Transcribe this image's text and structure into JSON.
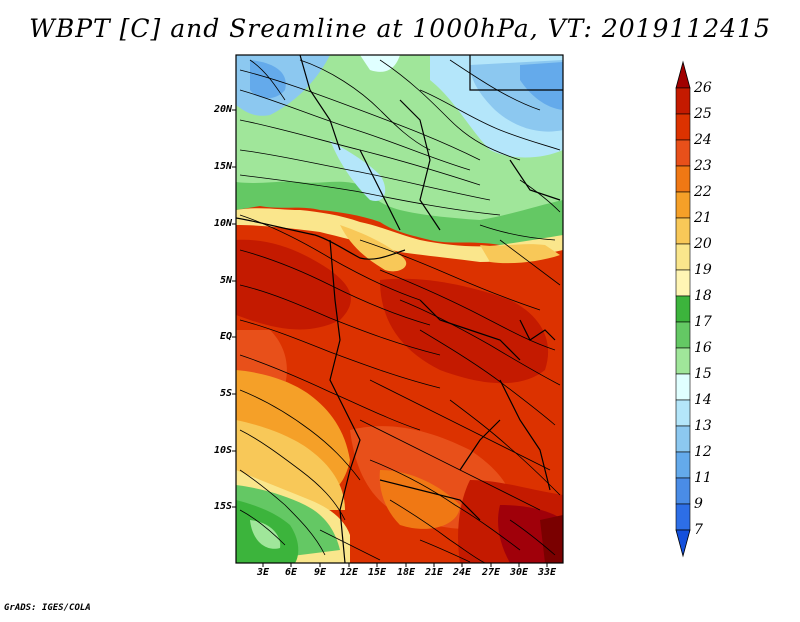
{
  "title": "WBPT [C] and Sreamline at 1000hPa, VT: 2019112415",
  "credit": "GrADS: IGES/COLA",
  "lat_labels": [
    "20N",
    "15N",
    "10N",
    "5N",
    "EQ",
    "5S",
    "10S",
    "15S"
  ],
  "lon_labels": [
    "3E",
    "6E",
    "9E",
    "12E",
    "15E",
    "18E",
    "21E",
    "24E",
    "27E",
    "30E",
    "33E"
  ],
  "colorbar": {
    "labels": [
      "26",
      "25",
      "24",
      "23",
      "22",
      "21",
      "20",
      "19",
      "18",
      "17",
      "16",
      "15",
      "14",
      "13",
      "12",
      "11",
      "9",
      "7"
    ],
    "colors": [
      "#a00000",
      "#c41a00",
      "#dc3200",
      "#e8501a",
      "#f07814",
      "#f5a028",
      "#f8c858",
      "#fae68c",
      "#fff5b4",
      "#3cb43c",
      "#64c864",
      "#a0e69a",
      "#e0ffff",
      "#b4e6fa",
      "#8cc8f0",
      "#64aaeb",
      "#4a8ce6",
      "#2d6ee6",
      "#1450dc"
    ]
  }
}
